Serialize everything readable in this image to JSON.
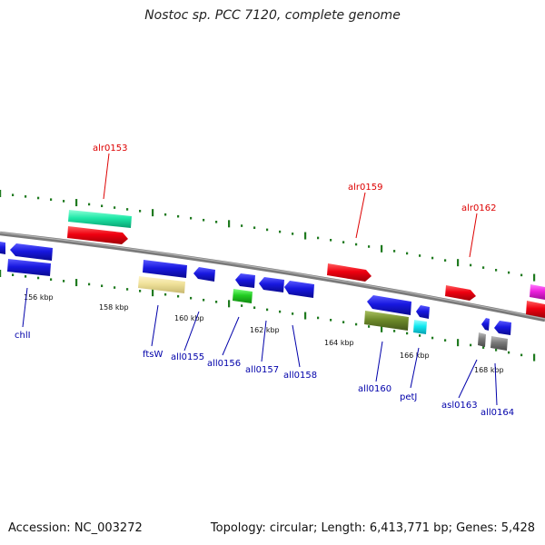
{
  "title": "Nostoc sp. PCC 7120, complete genome",
  "footer": {
    "accession": "Accession: NC_003272",
    "topology": "Topology: circular; Length: 6,413,771 bp; Genes: 5,428"
  },
  "tick_labels": [
    "156 kbp",
    "158 kbp",
    "160 kbp",
    "162 kbp",
    "164 kbp",
    "166 kbp",
    "168 kbp"
  ],
  "forward_genes": [
    {
      "label": "alr0153",
      "color": "#e8001c"
    },
    {
      "label": "alr0159",
      "color": "#e8001c"
    },
    {
      "label": "alr0162",
      "color": "#e8001c"
    }
  ],
  "reverse_genes": [
    {
      "label": "chlI",
      "color": "#1414d4"
    },
    {
      "label": "ftsW",
      "color": "#1414d4"
    },
    {
      "label": "all0155",
      "color": "#1414d4"
    },
    {
      "label": "all0156",
      "color": "#1414d4"
    },
    {
      "label": "all0157",
      "color": "#1414d4"
    },
    {
      "label": "all0158",
      "color": "#1414d4"
    },
    {
      "label": "all0160",
      "color": "#1414d4"
    },
    {
      "label": "petJ",
      "color": "#1414d4"
    },
    {
      "label": "asl0163",
      "color": "#1414d4"
    },
    {
      "label": "all0164",
      "color": "#1414d4"
    }
  ],
  "colors": {
    "forward_label": "#dd0000",
    "reverse_label": "#0000aa",
    "backbone": "#808080",
    "tick": "#1f7a1f"
  }
}
